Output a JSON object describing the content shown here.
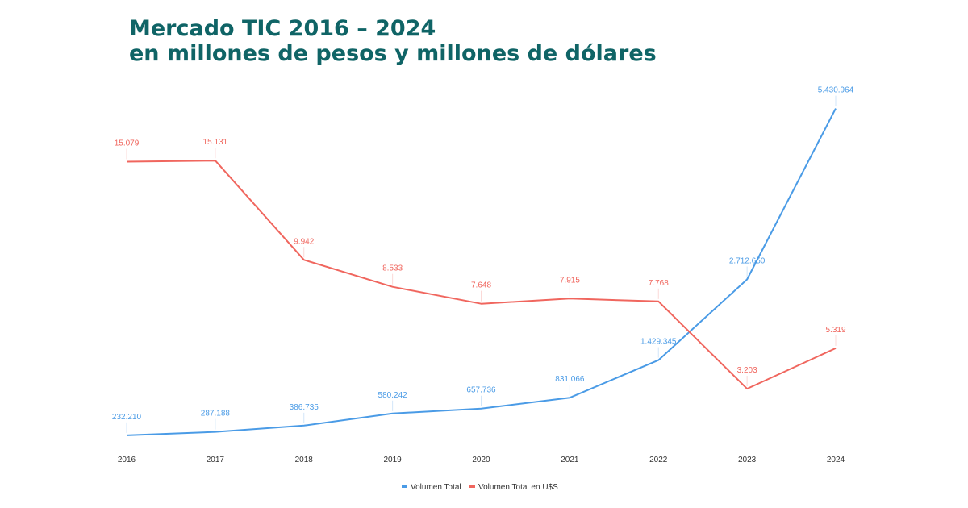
{
  "chart_data": {
    "type": "line",
    "title": "Mercado TIC 2016 – 2024",
    "subtitle": "en millones de pesos y millones de dólares",
    "categories": [
      "2016",
      "2017",
      "2018",
      "2019",
      "2020",
      "2021",
      "2022",
      "2023",
      "2024"
    ],
    "series": [
      {
        "name": "Volumen Total",
        "color": "#4a9be6",
        "axis": "left",
        "values": [
          232210,
          287188,
          386735,
          580242,
          657736,
          831066,
          1429345,
          2712650,
          5430964
        ],
        "labels": [
          "232.210",
          "287.188",
          "386.735",
          "580.242",
          "657.736",
          "831.066",
          "1.429.345",
          "2.712.650",
          "5.430.964"
        ],
        "ylim": [
          0,
          5900000
        ]
      },
      {
        "name": "Volumen Total en U$S",
        "color": "#f0665e",
        "axis": "right",
        "values": [
          15079,
          15131,
          9942,
          8533,
          7648,
          7915,
          7768,
          3203,
          5319
        ],
        "labels": [
          "15.079",
          "15.131",
          "9.942",
          "8.533",
          "7.648",
          "7.915",
          "7.768",
          "3.203",
          "5.319"
        ],
        "ylim": [
          0,
          19400
        ]
      }
    ],
    "xlabel": "",
    "ylabel": "",
    "grid": false,
    "legend": "bottom-center"
  }
}
